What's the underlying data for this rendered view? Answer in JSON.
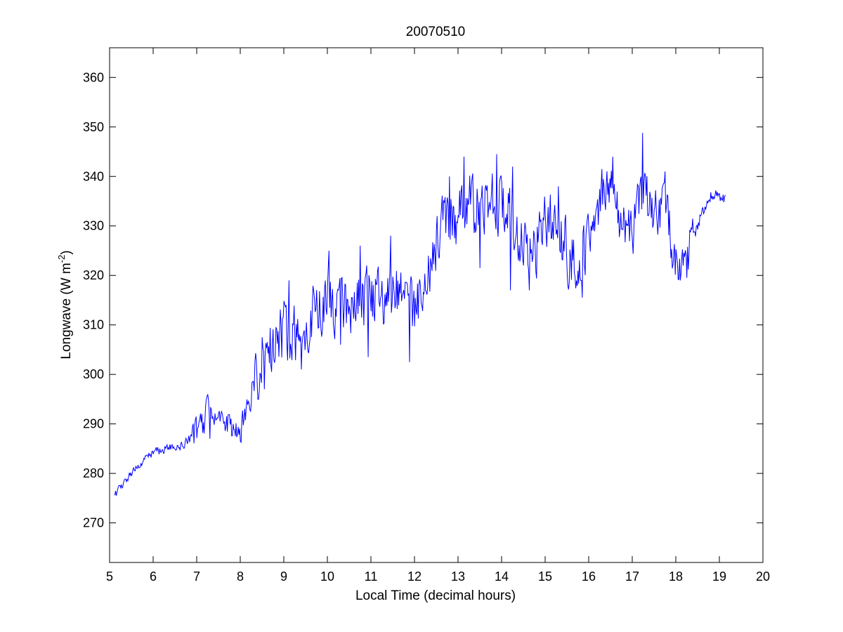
{
  "chart_data": {
    "type": "line",
    "title": "20070510",
    "xlabel": "Local Time (decimal hours)",
    "ylabel": {
      "main": "Longwave (W m",
      "sup": "-2",
      "close": ")"
    },
    "xlim": [
      5,
      20
    ],
    "ylim": [
      262,
      366
    ],
    "xticks": [
      5,
      6,
      7,
      8,
      9,
      10,
      11,
      12,
      13,
      14,
      15,
      16,
      17,
      18,
      19,
      20
    ],
    "yticks": [
      270,
      280,
      290,
      300,
      310,
      320,
      330,
      340,
      350,
      360
    ],
    "grid": false,
    "line_color": "#0000ff",
    "x": [
      5.12,
      5.25,
      5.5,
      5.75,
      6.0,
      6.25,
      6.5,
      6.75,
      7.0,
      7.25,
      7.5,
      7.75,
      8.0,
      8.25,
      8.5,
      8.75,
      9.0,
      9.25,
      9.5,
      9.75,
      10.0,
      10.25,
      10.5,
      10.75,
      11.0,
      11.25,
      11.5,
      11.75,
      12.0,
      12.25,
      12.5,
      12.75,
      13.0,
      13.25,
      13.5,
      13.75,
      14.0,
      14.25,
      14.5,
      14.75,
      15.0,
      15.25,
      15.5,
      15.75,
      16.0,
      16.25,
      16.5,
      16.75,
      17.0,
      17.25,
      17.5,
      17.75,
      18.0,
      18.25,
      18.5,
      18.75,
      19.0,
      19.15
    ],
    "y": [
      276,
      277,
      280,
      282,
      284.5,
      285,
      285,
      286,
      288,
      292,
      292,
      290,
      289,
      296,
      302,
      306,
      309,
      308,
      310,
      314,
      316,
      314,
      315,
      314,
      315,
      316,
      316,
      315,
      313,
      318,
      326,
      331,
      332,
      334,
      333,
      334,
      335,
      330,
      326,
      325,
      332,
      330,
      325,
      323,
      325,
      335,
      340,
      330,
      329,
      337,
      332,
      334,
      322,
      324,
      330,
      336,
      336,
      335
    ],
    "peaks": [
      {
        "x": 7.25,
        "y": 296
      },
      {
        "x": 8.5,
        "y": 307.5
      },
      {
        "x": 9.12,
        "y": 319
      },
      {
        "x": 10.03,
        "y": 325
      },
      {
        "x": 10.75,
        "y": 326
      },
      {
        "x": 11.45,
        "y": 328
      },
      {
        "x": 12.8,
        "y": 340
      },
      {
        "x": 13.13,
        "y": 344
      },
      {
        "x": 13.88,
        "y": 344.5
      },
      {
        "x": 14.25,
        "y": 342
      },
      {
        "x": 15.3,
        "y": 338
      },
      {
        "x": 16.3,
        "y": 341.5
      },
      {
        "x": 16.55,
        "y": 344
      },
      {
        "x": 17.23,
        "y": 348.8
      },
      {
        "x": 17.75,
        "y": 341
      }
    ],
    "troughs": [
      {
        "x": 5.15,
        "y": 275.5
      },
      {
        "x": 7.3,
        "y": 287
      },
      {
        "x": 8.55,
        "y": 297
      },
      {
        "x": 9.4,
        "y": 301
      },
      {
        "x": 10.3,
        "y": 306
      },
      {
        "x": 10.93,
        "y": 303.5
      },
      {
        "x": 11.88,
        "y": 302.5
      },
      {
        "x": 13.5,
        "y": 321.5
      },
      {
        "x": 14.2,
        "y": 317
      },
      {
        "x": 14.63,
        "y": 317
      },
      {
        "x": 15.85,
        "y": 315.5
      },
      {
        "x": 18.1,
        "y": 319
      }
    ]
  }
}
